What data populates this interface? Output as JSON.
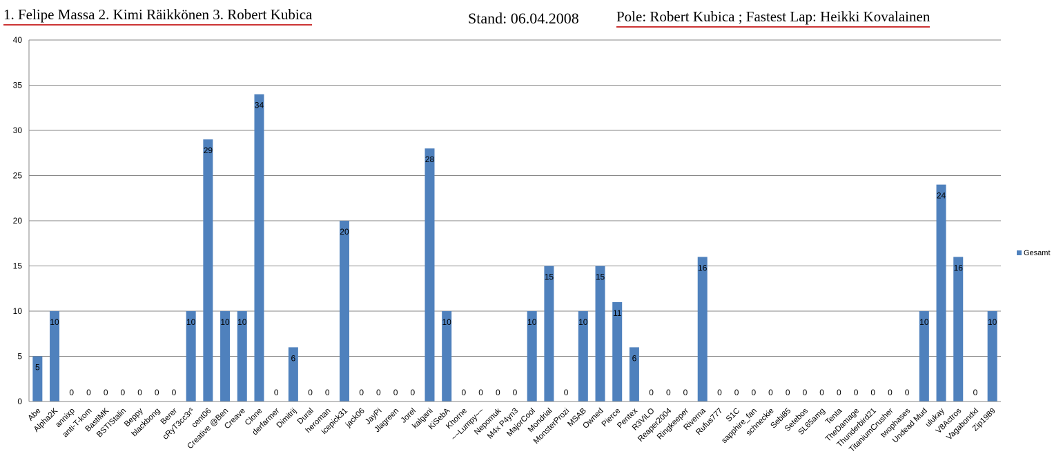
{
  "header": {
    "results": "1. Felipe Massa 2. Kimi Räikkönen 3. Robert Kubica",
    "stand": "Stand: 06.04.2008",
    "pole": "Pole: Robert Kubica ; Fastest Lap: Heikki Kovalainen"
  },
  "colors": {
    "bar": "#4f81bd",
    "grid": "#868686",
    "axis": "#868686"
  },
  "chart_data": {
    "type": "bar",
    "title": "",
    "xlabel": "",
    "ylabel": "",
    "ylim": [
      0,
      40
    ],
    "yticks": [
      0,
      5,
      10,
      15,
      20,
      25,
      30,
      35,
      40
    ],
    "grid": true,
    "legend_position": "right",
    "categories": [
      "Abe",
      "Alpha2K",
      "annixp",
      "anti-T-kom",
      "BastiMK",
      "BSTIStalin",
      "Beppy",
      "blackbong",
      "Berer",
      "cRyT3cc3r³",
      "cent06",
      "Creative @Ben",
      "Creave",
      "Clone",
      "derfarmer",
      "Dimitrij",
      "Dural",
      "heroman",
      "icepick31",
      "jack06",
      "JayPi",
      "Jlagreen",
      "Jorel",
      "kalgani",
      "KiSebA",
      "Khorne",
      "~~Lumpy~~",
      "Nepomuk",
      "M4x P4yn3",
      "MajorCool",
      "Mondrial",
      "MonsterProzi",
      "MSAB",
      "Owned",
      "Pierce",
      "Pentex",
      "R3ViLO",
      "Reaper2004",
      "Ringkeeper",
      "Riverna",
      "Rufus777",
      "S1C",
      "sapphire_fan",
      "schneckie",
      "Sebi85",
      "Setebos",
      "SL65amg",
      "Tenta",
      "TheDamage",
      "Thunderbird21",
      "TitaniumCrusher",
      "twophases",
      "Undead Mud",
      "ulukay",
      "V8Actros",
      "Vagabondxl",
      "Zip1989"
    ],
    "series": [
      {
        "name": "Gesamt",
        "values": [
          5,
          10,
          0,
          0,
          0,
          0,
          0,
          0,
          0,
          10,
          29,
          10,
          10,
          34,
          0,
          6,
          0,
          0,
          20,
          0,
          0,
          0,
          0,
          28,
          10,
          0,
          0,
          0,
          0,
          10,
          15,
          0,
          10,
          15,
          11,
          6,
          0,
          0,
          0,
          16,
          0,
          0,
          0,
          0,
          0,
          0,
          0,
          0,
          0,
          0,
          0,
          0,
          10,
          24,
          16,
          0,
          10
        ]
      }
    ]
  }
}
